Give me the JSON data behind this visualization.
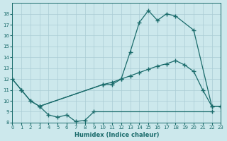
{
  "xlabel": "Humidex (Indice chaleur)",
  "bg_color": "#cce8ec",
  "line_color": "#1a6b6b",
  "grid_color": "#aaccd4",
  "xlim": [
    0,
    23
  ],
  "ylim": [
    8,
    19
  ],
  "yticks": [
    8,
    9,
    10,
    11,
    12,
    13,
    14,
    15,
    16,
    17,
    18
  ],
  "xticks": [
    0,
    1,
    2,
    3,
    4,
    5,
    6,
    7,
    8,
    9,
    10,
    11,
    12,
    13,
    14,
    15,
    16,
    17,
    18,
    19,
    20,
    21,
    22,
    23
  ],
  "curve_top_x": [
    0,
    1,
    2,
    3,
    10,
    11,
    12,
    13,
    14,
    15,
    16,
    17,
    18,
    20,
    22,
    23
  ],
  "curve_top_y": [
    12,
    11,
    10,
    9.5,
    11.5,
    11.5,
    12.0,
    14.5,
    17.2,
    18.3,
    17.4,
    18.0,
    17.8,
    16.5,
    9.5,
    9.5
  ],
  "curve_mid_x": [
    0,
    1,
    2,
    3,
    10,
    11,
    12,
    13,
    14,
    15,
    16,
    17,
    18,
    19,
    20,
    21,
    22,
    23
  ],
  "curve_mid_y": [
    12,
    11,
    10,
    9.5,
    11.5,
    11.7,
    12.0,
    12.3,
    12.6,
    12.9,
    13.2,
    13.4,
    13.7,
    13.3,
    12.7,
    11.0,
    9.5,
    9.5
  ],
  "curve_low_x": [
    3,
    4,
    5,
    6,
    7,
    8,
    9,
    19,
    22
  ],
  "curve_low_y": [
    9.5,
    8.7,
    8.5,
    8.7,
    8.1,
    8.2,
    9.0,
    9.0,
    9.0
  ]
}
